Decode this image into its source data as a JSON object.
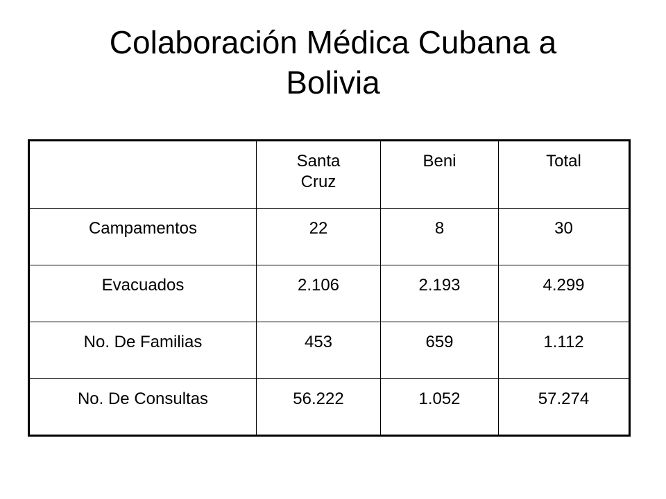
{
  "title": {
    "line1": "Colaboración Médica Cubana a",
    "line2": "Bolivia"
  },
  "table": {
    "header": {
      "corner": "",
      "col1_line1": "Santa",
      "col1_line2": "Cruz",
      "col2": "Beni",
      "col3": "Total"
    },
    "rows": [
      {
        "label": "Campamentos",
        "santa_cruz": "22",
        "beni": "8",
        "total": "30"
      },
      {
        "label": "Evacuados",
        "santa_cruz": "2.106",
        "beni": "2.193",
        "total": "4.299"
      },
      {
        "label": "No. De Familias",
        "santa_cruz": "453",
        "beni": "659",
        "total": "1.112"
      },
      {
        "label": "No. De Consultas",
        "santa_cruz": "56.222",
        "beni": "1.052",
        "total": "57.274"
      }
    ]
  }
}
